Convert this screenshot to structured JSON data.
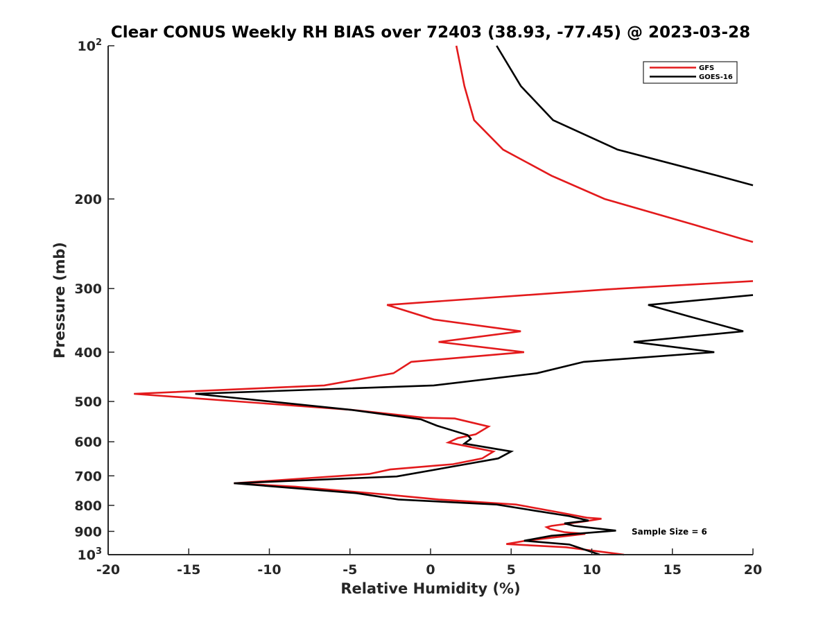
{
  "chart_data": {
    "type": "line",
    "title": "Clear CONUS Weekly RH BIAS over 72403 (38.93, -77.45) @ 2023-03-28",
    "xlabel": "Relative Humidity (%)",
    "ylabel": "Pressure (mb)",
    "xlim": [
      -20,
      20
    ],
    "ylim": [
      100,
      1000
    ],
    "y_scale": "log",
    "y_reversed": true,
    "grid": false,
    "legend_position": "top-right",
    "x_ticks": [
      "-20",
      "-15",
      "-10",
      "-5",
      "0",
      "5",
      "10",
      "15",
      "20"
    ],
    "y_ticks": [
      {
        "value": 100,
        "base": "10",
        "exp": "2"
      },
      {
        "value": 200,
        "label": "200"
      },
      {
        "value": 300,
        "label": "300"
      },
      {
        "value": 400,
        "label": "400"
      },
      {
        "value": 500,
        "label": "500"
      },
      {
        "value": 600,
        "label": "600"
      },
      {
        "value": 700,
        "label": "700"
      },
      {
        "value": 800,
        "label": "800"
      },
      {
        "value": 900,
        "label": "900"
      },
      {
        "value": 1000,
        "base": "10",
        "exp": "3"
      }
    ],
    "series": [
      {
        "name": "GFS",
        "color": "#e31a1c",
        "points": [
          [
            1.6,
            100
          ],
          [
            2.1,
            120
          ],
          [
            2.7,
            140
          ],
          [
            4.5,
            160
          ],
          [
            7.5,
            180
          ],
          [
            10.8,
            200
          ],
          [
            16.4,
            225
          ],
          [
            19.4,
            240
          ],
          [
            20.0,
            243
          ],
          [
            null,
            null
          ],
          [
            20.0,
            290
          ],
          [
            11.0,
            301
          ],
          [
            -2.7,
            323
          ],
          [
            0.2,
            345
          ],
          [
            5.6,
            364
          ],
          [
            0.5,
            382
          ],
          [
            5.8,
            400
          ],
          [
            -1.2,
            418
          ],
          [
            -2.3,
            440
          ],
          [
            -6.6,
            465
          ],
          [
            -18.4,
            483
          ],
          [
            -5.0,
            519
          ],
          [
            -0.4,
            538
          ],
          [
            1.5,
            540
          ],
          [
            3.6,
            560
          ],
          [
            2.8,
            580
          ],
          [
            1.7,
            590
          ],
          [
            1.1,
            602
          ],
          [
            3.9,
            627
          ],
          [
            3.2,
            647
          ],
          [
            1.4,
            664
          ],
          [
            -2.5,
            680
          ],
          [
            -3.8,
            694
          ],
          [
            -12.2,
            724
          ],
          [
            -8.4,
            735
          ],
          [
            -2.5,
            763
          ],
          [
            0.5,
            779
          ],
          [
            5.3,
            797
          ],
          [
            8.0,
            826
          ],
          [
            9.7,
            846
          ],
          [
            10.6,
            850
          ],
          [
            9.6,
            860
          ],
          [
            7.5,
            878
          ],
          [
            7.2,
            883
          ],
          [
            7.4,
            890
          ],
          [
            8.3,
            903
          ],
          [
            9.6,
            910
          ],
          [
            5.9,
            939
          ],
          [
            4.7,
            953
          ],
          [
            8.4,
            967
          ],
          [
            12.0,
            1000
          ]
        ]
      },
      {
        "name": "GOES-16",
        "color": "#000000",
        "points": [
          [
            4.1,
            100
          ],
          [
            5.6,
            120
          ],
          [
            7.6,
            140
          ],
          [
            11.6,
            160
          ],
          [
            17.8,
            180
          ],
          [
            20.0,
            188
          ],
          [
            null,
            null
          ],
          [
            20.0,
            309
          ],
          [
            13.5,
            323
          ],
          [
            16.0,
            340
          ],
          [
            19.4,
            364
          ],
          [
            12.6,
            382
          ],
          [
            17.6,
            400
          ],
          [
            9.5,
            418
          ],
          [
            6.6,
            440
          ],
          [
            0.2,
            465
          ],
          [
            -14.6,
            483
          ],
          [
            -5.0,
            519
          ],
          [
            -0.6,
            542
          ],
          [
            0.4,
            558
          ],
          [
            2.3,
            582
          ],
          [
            2.5,
            592
          ],
          [
            2.1,
            605
          ],
          [
            5.0,
            627
          ],
          [
            4.2,
            647
          ],
          [
            2.2,
            664
          ],
          [
            -2.1,
            702
          ],
          [
            -12.2,
            724
          ],
          [
            -4.6,
            757
          ],
          [
            -2.0,
            779
          ],
          [
            4.1,
            797
          ],
          [
            6.5,
            820
          ],
          [
            8.6,
            840
          ],
          [
            9.8,
            857
          ],
          [
            8.3,
            868
          ],
          [
            8.9,
            878
          ],
          [
            11.5,
            897
          ],
          [
            7.5,
            918
          ],
          [
            5.8,
            939
          ],
          [
            8.6,
            955
          ],
          [
            10.5,
            1000
          ]
        ]
      }
    ],
    "annotations": [
      "Sample Size = 6"
    ]
  }
}
